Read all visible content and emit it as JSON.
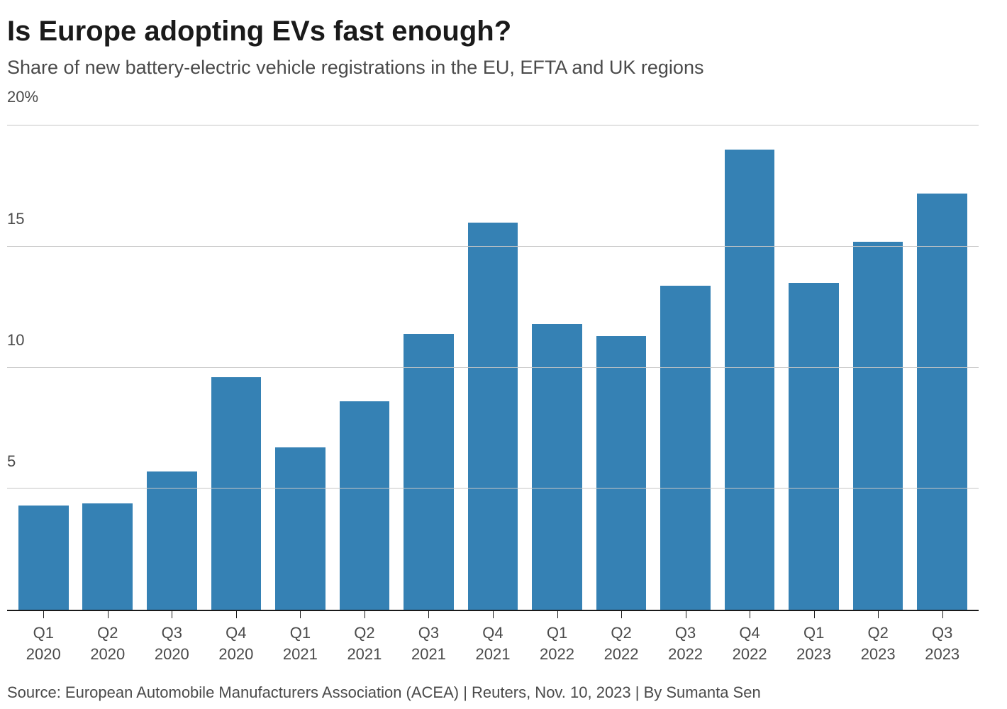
{
  "header": {
    "title": "Is Europe adopting EVs fast enough?",
    "subtitle": "Share of new battery-electric vehicle registrations in the EU, EFTA and UK regions"
  },
  "chart": {
    "type": "bar",
    "categories": [
      {
        "q": "Q1",
        "y": "2020"
      },
      {
        "q": "Q2",
        "y": "2020"
      },
      {
        "q": "Q3",
        "y": "2020"
      },
      {
        "q": "Q4",
        "y": "2020"
      },
      {
        "q": "Q1",
        "y": "2021"
      },
      {
        "q": "Q2",
        "y": "2021"
      },
      {
        "q": "Q3",
        "y": "2021"
      },
      {
        "q": "Q4",
        "y": "2021"
      },
      {
        "q": "Q1",
        "y": "2022"
      },
      {
        "q": "Q2",
        "y": "2022"
      },
      {
        "q": "Q3",
        "y": "2022"
      },
      {
        "q": "Q4",
        "y": "2022"
      },
      {
        "q": "Q1",
        "y": "2023"
      },
      {
        "q": "Q2",
        "y": "2023"
      },
      {
        "q": "Q3",
        "y": "2023"
      }
    ],
    "values": [
      4.3,
      4.4,
      5.7,
      9.6,
      6.7,
      8.6,
      11.4,
      16.0,
      11.8,
      11.3,
      13.4,
      19.0,
      13.5,
      15.2,
      17.2
    ],
    "bar_color": "#3581b4",
    "bar_width": 0.78,
    "ymin": 0,
    "ymax": 21.0,
    "yticks": [
      {
        "v": 5,
        "label": "5"
      },
      {
        "v": 10,
        "label": "10"
      },
      {
        "v": 15,
        "label": "15"
      },
      {
        "v": 20,
        "label": "20%"
      }
    ],
    "grid_color": "#c6c6c6",
    "axis_color": "#1a1a1a",
    "background_color": "#ffffff",
    "title_fontsize": 40,
    "subtitle_fontsize": 27,
    "tick_fontsize": 22
  },
  "footer": {
    "text": "Source: European Automobile Manufacturers Association (ACEA) | Reuters, Nov. 10, 2023 | By Sumanta Sen"
  }
}
